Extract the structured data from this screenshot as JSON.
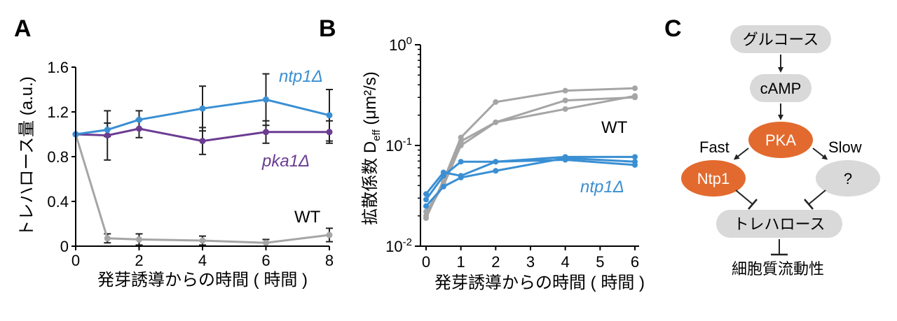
{
  "panels": {
    "a": "A",
    "b": "B",
    "c": "C"
  },
  "colors": {
    "wt": "#a5a5a5",
    "ntp1": "#3a8fd3",
    "pka1": "#6b3c92",
    "orange": "#e36a2e",
    "grey_box": "#d9d9d9",
    "errbar": "#222222"
  },
  "chart_data": [
    {
      "type": "line",
      "ylabel": "トレハロース量 (a.u.)",
      "xlabel": "発芽誘導からの時間 ( 時間 )",
      "xlim": [
        0,
        8
      ],
      "ylim": [
        0,
        1.6
      ],
      "xticks": [
        "0",
        "2",
        "4",
        "6",
        "8"
      ],
      "yticks": [
        "0",
        "0.4",
        "0.8",
        "1.2",
        "1.6"
      ],
      "series": [
        {
          "name": "ntp1Δ",
          "color": "#3a8fd3",
          "x": [
            0,
            1,
            2,
            4,
            6,
            8
          ],
          "y": [
            1.0,
            1.04,
            1.13,
            1.23,
            1.31,
            1.17
          ],
          "err": [
            0,
            0.06,
            0.08,
            0.2,
            0.23,
            0.23
          ]
        },
        {
          "name": "pka1Δ",
          "color": "#6b3c92",
          "x": [
            0,
            1,
            2,
            4,
            6,
            8
          ],
          "y": [
            1.0,
            0.99,
            1.05,
            0.94,
            1.02,
            1.02
          ],
          "err": [
            0,
            0.22,
            0.08,
            0.12,
            0.1,
            0.1
          ]
        },
        {
          "name": "WT",
          "color": "#a5a5a5",
          "x": [
            0,
            1,
            2,
            4,
            6,
            8
          ],
          "y": [
            1.0,
            0.07,
            0.06,
            0.05,
            0.03,
            0.1
          ],
          "err": [
            0,
            0.04,
            0.05,
            0.04,
            0.03,
            0.06
          ]
        }
      ],
      "labels": {
        "ntp1": "ntp1Δ",
        "pka1": "pka1Δ",
        "wt": "WT"
      }
    },
    {
      "type": "line",
      "yscale": "log",
      "ylabel_main": "拡散係数 D",
      "ylabel_sub": "eff",
      "ylabel_unit": " (μm²/s)",
      "xlabel": "発芽誘導からの時間 ( 時間 )",
      "xlim": [
        0,
        6
      ],
      "ylim": [
        0.01,
        1
      ],
      "xticks": [
        "0",
        "1",
        "2",
        "3",
        "4",
        "5",
        "6"
      ],
      "yticks": [
        {
          "base": "10",
          "exp": "-2"
        },
        {
          "base": "10",
          "exp": "-1"
        },
        {
          "base": "10",
          "exp": "0"
        }
      ],
      "series": [
        {
          "name": "WT-1",
          "group": "WT",
          "x": [
            0,
            0.5,
            1,
            2,
            4,
            6
          ],
          "y": [
            0.019,
            0.045,
            0.12,
            0.27,
            0.35,
            0.37
          ]
        },
        {
          "name": "WT-2",
          "group": "WT",
          "x": [
            0,
            0.5,
            1,
            2,
            4,
            6
          ],
          "y": [
            0.02,
            0.042,
            0.11,
            0.17,
            0.28,
            0.3
          ]
        },
        {
          "name": "WT-3",
          "group": "WT",
          "x": [
            0,
            0.5,
            1,
            2,
            4,
            6
          ],
          "y": [
            0.022,
            0.04,
            0.1,
            0.17,
            0.23,
            0.31
          ]
        },
        {
          "name": "ntp1Δ-1",
          "group": "ntp1Δ",
          "x": [
            0,
            0.5,
            1,
            2,
            4,
            6
          ],
          "y": [
            0.033,
            0.054,
            0.05,
            0.069,
            0.077,
            0.077
          ]
        },
        {
          "name": "ntp1Δ-2",
          "group": "ntp1Δ",
          "x": [
            0,
            0.5,
            1,
            2,
            4,
            6
          ],
          "y": [
            0.029,
            0.05,
            0.069,
            0.069,
            0.072,
            0.064
          ]
        },
        {
          "name": "ntp1Δ-3",
          "group": "ntp1Δ",
          "x": [
            0,
            0.5,
            1,
            2,
            4,
            6
          ],
          "y": [
            0.025,
            0.039,
            0.048,
            0.056,
            0.075,
            0.069
          ]
        }
      ],
      "labels": {
        "wt": "WT",
        "ntp1": "ntp1Δ"
      }
    }
  ],
  "diagram": {
    "glucose": "グルコース",
    "camp": "cAMP",
    "pka": "PKA",
    "fast": "Fast",
    "slow": "Slow",
    "ntp1": "Ntp1",
    "unknown": "?",
    "trehalose": "トレハロース",
    "fluidity": "細胞質流動性"
  }
}
